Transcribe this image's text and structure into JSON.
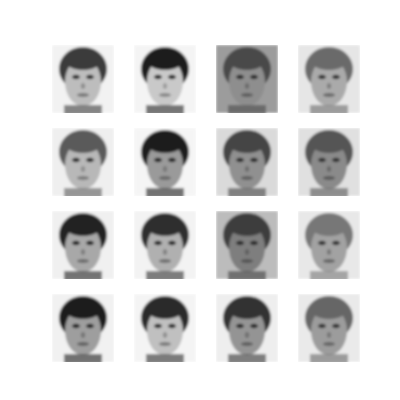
{
  "figure": {
    "background": "#ffffff",
    "rows": 4,
    "cols": 4
  },
  "tiles": [
    {
      "row": 0,
      "col": 0,
      "hair": "#3a3a3a",
      "skin": "#bdbdbd",
      "eyes": "#2a2a2a",
      "mouth": "#7a7a7a",
      "bg": "#f2f2f2"
    },
    {
      "row": 0,
      "col": 1,
      "hair": "#1e1e1e",
      "skin": "#c9c9c9",
      "eyes": "#222222",
      "mouth": "#8a8a8a",
      "bg": "#f4f4f4"
    },
    {
      "row": 0,
      "col": 2,
      "hair": "#4a4a4a",
      "skin": "#8e8e8e",
      "eyes": "#2c2c2c",
      "mouth": "#5e5e5e",
      "bg": "#9c9c9c"
    },
    {
      "row": 0,
      "col": 3,
      "hair": "#6a6a6a",
      "skin": "#aaaaaa",
      "eyes": "#333333",
      "mouth": "#6b6b6b",
      "bg": "#e6e6e6"
    },
    {
      "row": 1,
      "col": 0,
      "hair": "#5a5a5a",
      "skin": "#b8b8b8",
      "eyes": "#262626",
      "mouth": "#7d7d7d",
      "bg": "#efefef"
    },
    {
      "row": 1,
      "col": 1,
      "hair": "#1a1a1a",
      "skin": "#9a9a9a",
      "eyes": "#202020",
      "mouth": "#6a6a6a",
      "bg": "#f5f5f5"
    },
    {
      "row": 1,
      "col": 2,
      "hair": "#444444",
      "skin": "#909090",
      "eyes": "#2a2a2a",
      "mouth": "#606060",
      "bg": "#dadada"
    },
    {
      "row": 1,
      "col": 3,
      "hair": "#555555",
      "skin": "#8a8a8a",
      "eyes": "#303030",
      "mouth": "#5a5a5a",
      "bg": "#e0e0e0"
    },
    {
      "row": 2,
      "col": 0,
      "hair": "#202020",
      "skin": "#a8a8a8",
      "eyes": "#1f1f1f",
      "mouth": "#6d6d6d",
      "bg": "#f0f0f0"
    },
    {
      "row": 2,
      "col": 1,
      "hair": "#2e2e2e",
      "skin": "#b0b0b0",
      "eyes": "#242424",
      "mouth": "#707070",
      "bg": "#f3f3f3"
    },
    {
      "row": 2,
      "col": 2,
      "hair": "#3c3c3c",
      "skin": "#7e7e7e",
      "eyes": "#2a2a2a",
      "mouth": "#555555",
      "bg": "#bcbcbc"
    },
    {
      "row": 2,
      "col": 3,
      "hair": "#777777",
      "skin": "#a2a2a2",
      "eyes": "#333333",
      "mouth": "#666666",
      "bg": "#e8e8e8"
    },
    {
      "row": 3,
      "col": 0,
      "hair": "#1c1c1c",
      "skin": "#9e9e9e",
      "eyes": "#202020",
      "mouth": "#636363",
      "bg": "#f1f1f1"
    },
    {
      "row": 3,
      "col": 1,
      "hair": "#2a2a2a",
      "skin": "#c0c0c0",
      "eyes": "#262626",
      "mouth": "#7c7c7c",
      "bg": "#f4f4f4"
    },
    {
      "row": 3,
      "col": 2,
      "hair": "#333333",
      "skin": "#949494",
      "eyes": "#262626",
      "mouth": "#5f5f5f",
      "bg": "#eeeeee"
    },
    {
      "row": 3,
      "col": 3,
      "hair": "#666666",
      "skin": "#9c9c9c",
      "eyes": "#333333",
      "mouth": "#666666",
      "bg": "#eaeaea"
    }
  ]
}
